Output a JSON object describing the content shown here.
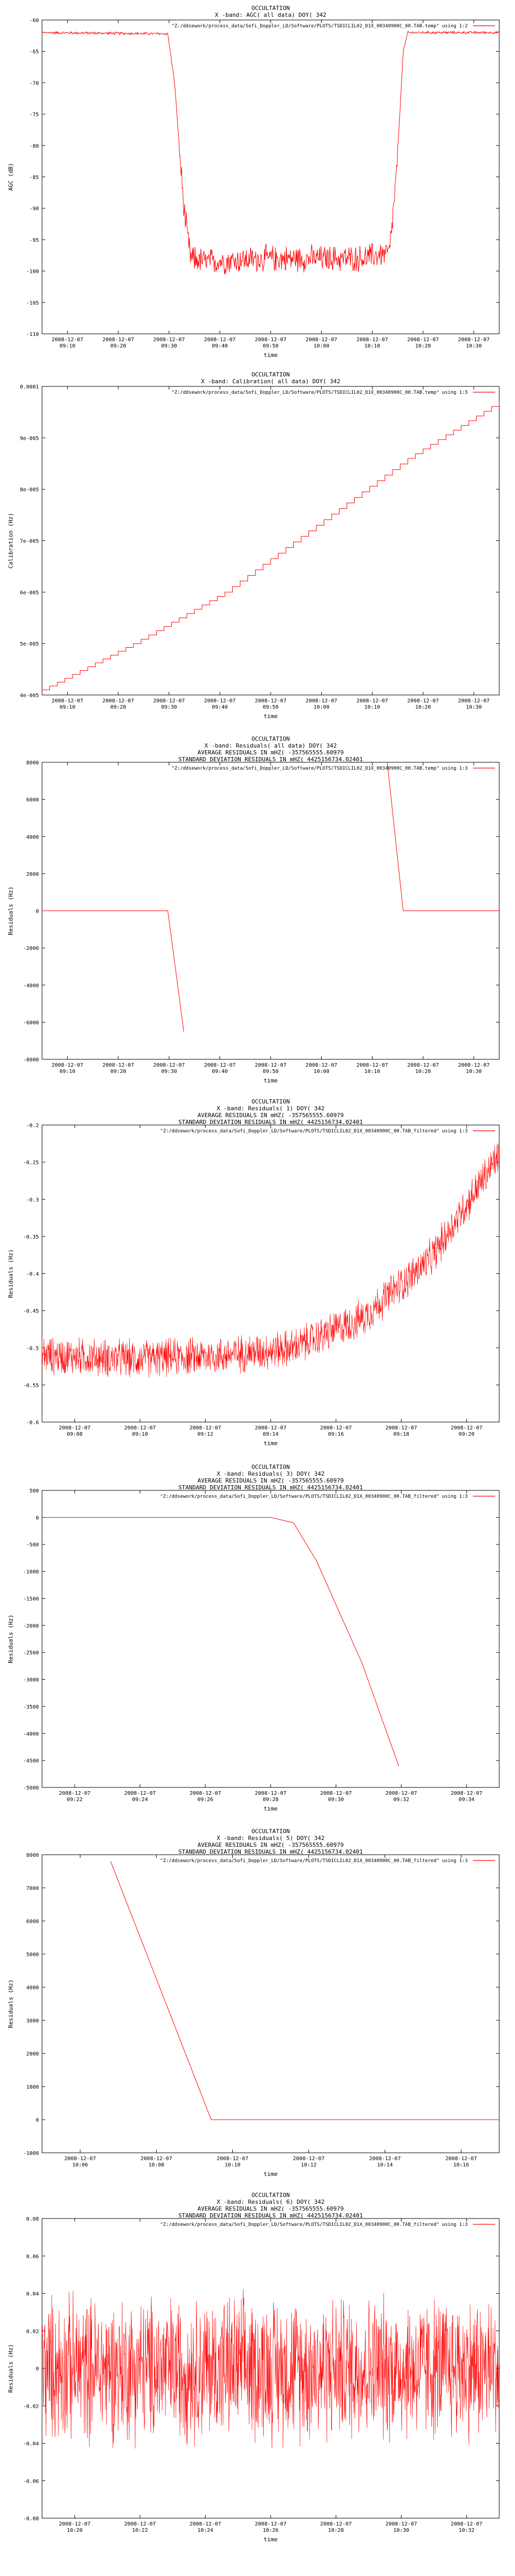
{
  "chart_data": [
    {
      "type": "line",
      "title_lines": [
        "OCCULTATION",
        "X -band: AGC( all data) DOY( 342"
      ],
      "legend": "\"Z:/ddsework/process_data/Sofi_Doppler_LD/Software/PLOTS/TSDICLIL02_D1X_00340900C_00.TAB.temp\" using 1:2",
      "xlabel": "time",
      "ylabel": "AGC (dB)",
      "ylim": [
        -110,
        -60
      ],
      "yticks": [
        "-60",
        "-65",
        "-70",
        "-75",
        "-80",
        "-85",
        "-90",
        "-95",
        "-100",
        "-105",
        "-110"
      ],
      "xticks": [
        [
          "2008-12-07",
          "09:10"
        ],
        [
          "2008-12-07",
          "09:20"
        ],
        [
          "2008-12-07",
          "09:30"
        ],
        [
          "2008-12-07",
          "09:40"
        ],
        [
          "2008-12-07",
          "09:50"
        ],
        [
          "2008-12-07",
          "10:00"
        ],
        [
          "2008-12-07",
          "10:10"
        ],
        [
          "2008-12-07",
          "10:20"
        ],
        [
          "2008-12-07",
          "10:30"
        ]
      ],
      "series": [
        {
          "points": [
            [
              -0.02,
              -62
            ],
            [
              0.275,
              -62.2
            ],
            [
              0.29,
              -70
            ],
            [
              0.31,
              -90
            ],
            [
              0.325,
              -98
            ],
            [
              0.36,
              -98.5
            ],
            [
              0.5,
              -98
            ],
            [
              0.7,
              -98
            ],
            [
              0.76,
              -97
            ],
            [
              0.775,
              -85
            ],
            [
              0.79,
              -65
            ],
            [
              0.8,
              -62
            ],
            [
              1.0,
              -62
            ]
          ],
          "noise": 2.5
        }
      ],
      "grid": false
    },
    {
      "type": "line",
      "title_lines": [
        "OCCULTATION",
        "X -band: Calibration( all data) DOY( 342"
      ],
      "legend": "\"Z:/ddsework/process_data/Sofi_Doppler_LD/Software/PLOTS/TSDICLIL02_D1X_00340900C_00.TAB.temp\" using 1:5",
      "xlabel": "time",
      "ylabel": "Calibration (Hz)",
      "ylim": [
        4e-05,
        0.0001
      ],
      "yticks": [
        "0.0001",
        "9e-005",
        "8e-005",
        "7e-005",
        "6e-005",
        "5e-005",
        "4e-005"
      ],
      "xticks": [
        [
          "2008-12-07",
          "09:10"
        ],
        [
          "2008-12-07",
          "09:20"
        ],
        [
          "2008-12-07",
          "09:30"
        ],
        [
          "2008-12-07",
          "09:40"
        ],
        [
          "2008-12-07",
          "09:50"
        ],
        [
          "2008-12-07",
          "10:00"
        ],
        [
          "2008-12-07",
          "10:10"
        ],
        [
          "2008-12-07",
          "10:20"
        ],
        [
          "2008-12-07",
          "10:30"
        ]
      ],
      "series": [
        {
          "points": [
            [
              0.0,
              4.1e-05
            ],
            [
              0.2,
              5e-05
            ],
            [
              0.4,
              6e-05
            ],
            [
              0.6,
              7.3e-05
            ],
            [
              0.8,
              8.6e-05
            ],
            [
              1.0,
              9.7e-05
            ]
          ],
          "steps": 60
        }
      ],
      "grid": false
    },
    {
      "type": "line",
      "title_lines": [
        "OCCULTATION",
        "X -band: Residuals( all data) DOY( 342",
        "AVERAGE RESIDUALS IN mHZ( -357565555.60979",
        "STANDARD DEVIATION RESIDUALS IN mHZ( 4425156734.02401"
      ],
      "legend": "\"Z:/ddsework/process_data/Sofi_Doppler_LD/Software/PLOTS/TSDICLIL02_D1X_00340900C_00.TAB.temp\" using 1:3",
      "xlabel": "time",
      "ylabel": "Residuals (Hz)",
      "ylim": [
        -8000,
        8000
      ],
      "yticks": [
        "8000",
        "6000",
        "4000",
        "2000",
        "0",
        "-2000",
        "-4000",
        "-6000",
        "-8000"
      ],
      "xticks": [
        [
          "2008-12-07",
          "09:10"
        ],
        [
          "2008-12-07",
          "09:20"
        ],
        [
          "2008-12-07",
          "09:30"
        ],
        [
          "2008-12-07",
          "09:40"
        ],
        [
          "2008-12-07",
          "09:50"
        ],
        [
          "2008-12-07",
          "10:00"
        ],
        [
          "2008-12-07",
          "10:10"
        ],
        [
          "2008-12-07",
          "10:20"
        ],
        [
          "2008-12-07",
          "10:30"
        ]
      ],
      "series": [
        {
          "points": [
            [
              -0.02,
              0
            ],
            [
              0.275,
              0
            ],
            [
              0.31,
              -6500
            ]
          ]
        },
        {
          "points": [
            [
              0.755,
              8000
            ],
            [
              0.79,
              0
            ],
            [
              1.0,
              0
            ]
          ]
        }
      ],
      "grid": false
    },
    {
      "type": "line",
      "title_lines": [
        "OCCULTATION",
        "X -band: Residuals( 1) DOY( 342",
        "AVERAGE RESIDUALS IN mHZ( -357565555.60979",
        "STANDARD DEVIATION RESIDUALS IN mHZ( 4425156734.02401"
      ],
      "legend": "\"Z:/ddsework/process_data/Sofi_Doppler_LD/Software/PLOTS/TSDICLIL02_D1X_00340900C_00.TAB_filtered\" using 1:3",
      "xlabel": "time",
      "ylabel": "Residuals (Hz)",
      "ylim": [
        -0.6,
        -0.2
      ],
      "yticks": [
        "-0.2",
        "-0.25",
        "-0.3",
        "-0.35",
        "-0.4",
        "-0.45",
        "-0.5",
        "-0.55",
        "-0.6"
      ],
      "xticks": [
        [
          "2008-12-07",
          "09:08"
        ],
        [
          "2008-12-07",
          "09:10"
        ],
        [
          "2008-12-07",
          "09:12"
        ],
        [
          "2008-12-07",
          "09:14"
        ],
        [
          "2008-12-07",
          "09:16"
        ],
        [
          "2008-12-07",
          "09:18"
        ],
        [
          "2008-12-07",
          "09:20"
        ]
      ],
      "series": [
        {
          "points": [
            [
              0.0,
              -0.51
            ],
            [
              0.2,
              -0.515
            ],
            [
              0.4,
              -0.51
            ],
            [
              0.55,
              -0.5
            ],
            [
              0.7,
              -0.46
            ],
            [
              0.85,
              -0.38
            ],
            [
              1.0,
              -0.24
            ]
          ],
          "noise": 0.03,
          "dense": true
        }
      ],
      "grid": false
    },
    {
      "type": "line",
      "title_lines": [
        "OCCULTATION",
        "X -band: Residuals( 3) DOY( 342",
        "AVERAGE RESIDUALS IN mHZ( -357565555.60979",
        "STANDARD DEVIATION RESIDUALS IN mHZ( 4425156734.02401"
      ],
      "legend": "\"Z:/ddsework/process_data/Sofi_Doppler_LD/Software/PLOTS/TSDICLIL02_D1X_00340900C_00.TAB_filtered\" using 1:3",
      "xlabel": "time",
      "ylabel": "Residuals (Hz)",
      "ylim": [
        -5000,
        500
      ],
      "yticks": [
        "500",
        "0",
        "-500",
        "-1000",
        "-1500",
        "-2000",
        "-2500",
        "-3000",
        "-3500",
        "-4000",
        "-4500",
        "-5000"
      ],
      "xticks": [
        [
          "2008-12-07",
          "09:22"
        ],
        [
          "2008-12-07",
          "09:24"
        ],
        [
          "2008-12-07",
          "09:26"
        ],
        [
          "2008-12-07",
          "09:28"
        ],
        [
          "2008-12-07",
          "09:30"
        ],
        [
          "2008-12-07",
          "09:32"
        ],
        [
          "2008-12-07",
          "09:34"
        ]
      ],
      "series": [
        {
          "points": [
            [
              0.0,
              0
            ],
            [
              0.5,
              0
            ],
            [
              0.55,
              -100
            ],
            [
              0.6,
              -800
            ],
            [
              0.7,
              -2700
            ],
            [
              0.78,
              -4600
            ]
          ]
        }
      ],
      "grid": false
    },
    {
      "type": "line",
      "title_lines": [
        "OCCULTATION",
        "X -band: Residuals( 5) DOY( 342",
        "AVERAGE RESIDUALS IN mHZ( -357565555.60979",
        "STANDARD DEVIATION RESIDUALS IN mHZ( 4425156734.02401"
      ],
      "legend": "\"Z:/ddsework/process_data/Sofi_Doppler_LD/Software/PLOTS/TSDICLIL02_D1X_00340900C_00.TAB_filtered\" using 1:3",
      "xlabel": "time",
      "ylabel": "Residuals (Hz)",
      "ylim": [
        -1000,
        8000
      ],
      "yticks": [
        "8000",
        "7000",
        "6000",
        "5000",
        "4000",
        "3000",
        "2000",
        "1000",
        "0",
        "-1000"
      ],
      "xticks": [
        [
          "2008-12-07",
          "10:06"
        ],
        [
          "2008-12-07",
          "10:08"
        ],
        [
          "2008-12-07",
          "10:10"
        ],
        [
          "2008-12-07",
          "10:12"
        ],
        [
          "2008-12-07",
          "10:14"
        ],
        [
          "2008-12-07",
          "10:16"
        ]
      ],
      "series": [
        {
          "points": [
            [
              0.15,
              7800
            ],
            [
              0.37,
              0
            ],
            [
              1.0,
              0
            ]
          ]
        }
      ],
      "grid": false
    },
    {
      "type": "line",
      "title_lines": [
        "OCCULTATION",
        "X -band: Residuals( 6) DOY( 342",
        "AVERAGE RESIDUALS IN mHZ( -357565555.60979",
        "STANDARD DEVIATION RESIDUALS IN mHZ( 4425156734.02401"
      ],
      "legend": "\"Z:/ddsework/process_data/Sofi_Doppler_LD/Software/PLOTS/TSDICLIL02_D1X_00340900C_00.TAB_filtered\" using 1:3",
      "xlabel": "time",
      "ylabel": "Residuals (Hz)",
      "ylim": [
        -0.08,
        0.08
      ],
      "yticks": [
        "0.08",
        "0.06",
        "0.04",
        "0.02",
        "0",
        "-0.02",
        "-0.04",
        "-0.06",
        "-0.08"
      ],
      "xticks": [
        [
          "2008-12-07",
          "10:20"
        ],
        [
          "2008-12-07",
          "10:22"
        ],
        [
          "2008-12-07",
          "10:24"
        ],
        [
          "2008-12-07",
          "10:26"
        ],
        [
          "2008-12-07",
          "10:28"
        ],
        [
          "2008-12-07",
          "10:30"
        ],
        [
          "2008-12-07",
          "10:32"
        ]
      ],
      "series": [
        {
          "points": [
            [
              0.0,
              0
            ],
            [
              1.0,
              0
            ]
          ],
          "noise": 0.045,
          "dense": true
        }
      ],
      "grid": false
    }
  ],
  "colors": {
    "series": "#ff0000",
    "axis": "#000000",
    "background": "#ffffff"
  }
}
